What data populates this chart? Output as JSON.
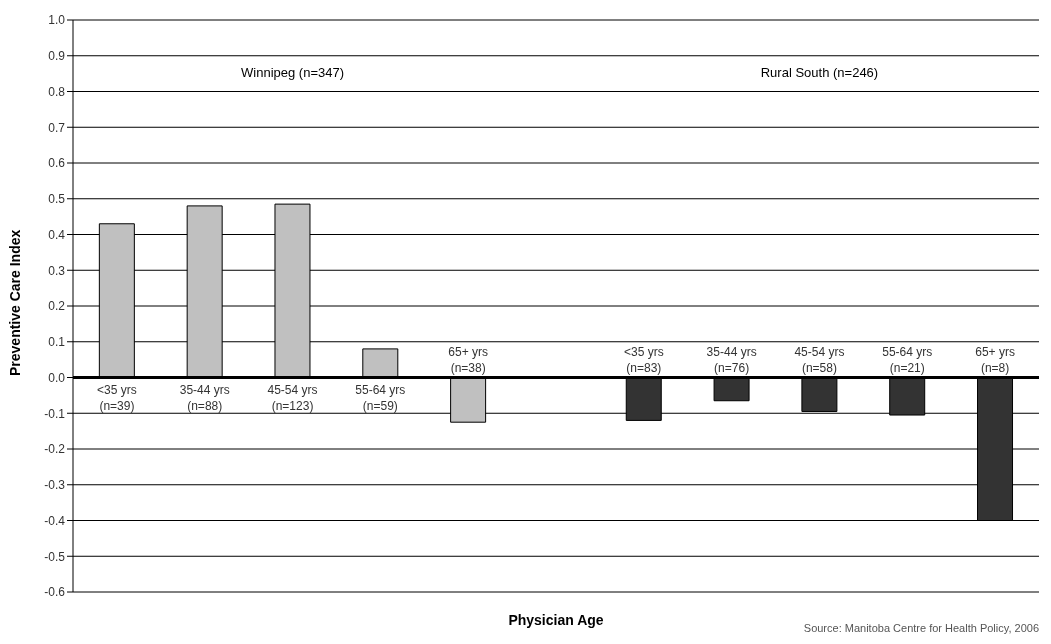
{
  "chart_data": {
    "type": "bar",
    "xlabel": "Physician Age",
    "ylabel": "Preventive Care Index",
    "categories": [
      "<35 yrs\n(n=39)",
      "35-44 yrs\n(n=88)",
      "45-54 yrs\n(n=123)",
      "55-64 yrs\n(n=59)",
      "65+ yrs\n(n=38)",
      null,
      "<35 yrs\n(n=83)",
      "35-44 yrs\n(n=76)",
      "45-54 yrs\n(n=58)",
      "55-64 yrs\n(n=21)",
      "65+ yrs\n(n=8)"
    ],
    "values": [
      0.43,
      0.48,
      0.485,
      0.08,
      -0.125,
      null,
      -0.12,
      -0.065,
      -0.095,
      -0.105,
      -0.4
    ],
    "colors": [
      "#c0c0c0",
      "#c0c0c0",
      "#c0c0c0",
      "#c0c0c0",
      "#c0c0c0",
      null,
      "#333333",
      "#333333",
      "#333333",
      "#333333",
      "#333333"
    ],
    "ylim": [
      -0.6,
      1.0
    ],
    "yticks": [
      {
        "value": -0.6,
        "label": "-0.6"
      },
      {
        "value": -0.5,
        "label": "-0.5"
      },
      {
        "value": -0.4,
        "label": "-0.4"
      },
      {
        "value": -0.3,
        "label": "-0.3"
      },
      {
        "value": -0.2,
        "label": "-0.2"
      },
      {
        "value": -0.1,
        "label": "-0.1"
      },
      {
        "value": 0,
        "label": "0.0"
      },
      {
        "value": 0.1,
        "label": "0.1"
      },
      {
        "value": 0.2,
        "label": "0.2"
      },
      {
        "value": 0.3,
        "label": "0.3"
      },
      {
        "value": 0.4,
        "label": "0.4"
      },
      {
        "value": 0.5,
        "label": "0.5"
      },
      {
        "value": 0.6,
        "label": "0.6"
      },
      {
        "value": 0.7,
        "label": "0.7"
      },
      {
        "value": 0.8,
        "label": "0.8"
      },
      {
        "value": 0.9,
        "label": "0.9"
      },
      {
        "value": 1.0,
        "label": "1.0"
      }
    ],
    "grid": "y",
    "annotations": [
      "Winnipeg (n=347)",
      "Rural South (n=246)",
      "Source: Manitoba Centre for Health Policy, 2006"
    ]
  }
}
